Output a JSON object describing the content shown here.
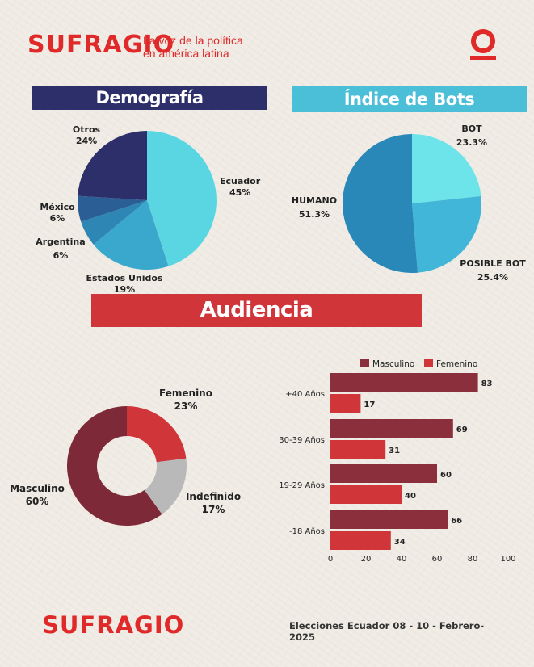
{
  "header": {
    "brand": "SUFRAGIO",
    "tagline_line1": "La voz de la política",
    "tagline_line2": "en américa latina",
    "logo_icon": "sufragio-logo-icon"
  },
  "colors": {
    "brand_red": "#e02a2a",
    "navy": "#2d2f6b",
    "cyan": "#4bbfd8",
    "masculino": "#8b2f3c",
    "femenino": "#d0353a"
  },
  "chart_data": [
    {
      "type": "pie",
      "title": "Demografía",
      "slices": [
        {
          "label": "Ecuador",
          "value": 45,
          "value_label": "45%",
          "color": "#5ad6e3"
        },
        {
          "label": "Estados Unidos",
          "value": 19,
          "value_label": "19%",
          "color": "#3aa8cc"
        },
        {
          "label": "Argentina",
          "value": 6,
          "value_label": "6%",
          "color": "#2e86b4"
        },
        {
          "label": "México",
          "value": 6,
          "value_label": "6%",
          "color": "#2a5e94"
        },
        {
          "label": "Otros",
          "value": 24,
          "value_label": "24%",
          "color": "#2d2f6b"
        }
      ]
    },
    {
      "type": "pie",
      "title": "Índice de Bots",
      "slices": [
        {
          "label": "BOT",
          "value": 23.3,
          "value_label": "23.3%",
          "color": "#6ce4ea"
        },
        {
          "label": "POSIBLE BOT",
          "value": 25.4,
          "value_label": "25.4%",
          "color": "#42b6d8"
        },
        {
          "label": "HUMANO",
          "value": 51.3,
          "value_label": "51.3%",
          "color": "#2a88b8"
        }
      ]
    },
    {
      "type": "pie",
      "title": "Audiencia",
      "donut": true,
      "slices": [
        {
          "label": "Femenino",
          "value": 23,
          "value_label": "23%",
          "color": "#d0353a"
        },
        {
          "label": "Indefinido",
          "value": 17,
          "value_label": "17%",
          "color": "#b9b9b9"
        },
        {
          "label": "Masculino",
          "value": 60,
          "value_label": "60%",
          "color": "#7e2937"
        }
      ]
    },
    {
      "type": "bar",
      "orientation": "horizontal",
      "categories": [
        "+40 Años",
        "30-39 Años",
        "19-29 Años",
        "-18 Años"
      ],
      "series": [
        {
          "name": "Masculino",
          "values": [
            83,
            69,
            60,
            66
          ],
          "color": "#8b2f3c"
        },
        {
          "name": "Femenino",
          "values": [
            17,
            31,
            40,
            34
          ],
          "color": "#d0353a"
        }
      ],
      "xlim": [
        0,
        100
      ],
      "xticks": [
        "0",
        "20",
        "40",
        "60",
        "80",
        "100"
      ],
      "legend": "top"
    }
  ],
  "footer": {
    "brand": "SUFRAGIO",
    "text": "Elecciones Ecuador 08 - 10 - Febrero-2025"
  }
}
